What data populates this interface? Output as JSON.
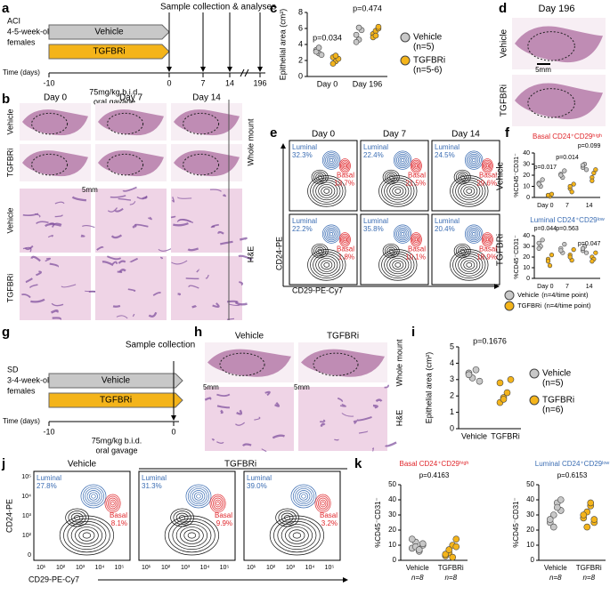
{
  "panel_labels": [
    "a",
    "b",
    "c",
    "d",
    "e",
    "f",
    "g",
    "h",
    "i",
    "j",
    "k"
  ],
  "a": {
    "group": "ACI",
    "age": "4-5-week-old",
    "sex": "females",
    "arms": [
      "Vehicle",
      "TGFBRi"
    ],
    "time_label": "Time (days)",
    "times": [
      "-10",
      "0",
      "7",
      "14",
      "196"
    ],
    "dose": "75mg/kg b.i.d.",
    "route": "oral gavage",
    "sample": "Sample collection & analyses"
  },
  "b": {
    "columns": [
      "Day 0",
      "Day 7",
      "Day 14"
    ],
    "rows": [
      "Vehicle",
      "TGFBRi",
      "Vehicle",
      "TGFBRi"
    ],
    "side": [
      "Whole mount",
      "H&E"
    ],
    "scale": "5mm"
  },
  "d": {
    "title": "Day 196",
    "rows": [
      "Vehicle",
      "TGFBRi"
    ],
    "scale": "5mm"
  },
  "e": {
    "columns": [
      "Day 0",
      "Day 7",
      "Day 14"
    ],
    "rows": [
      "Vehicle",
      "TGFBRi"
    ],
    "xlabel": "CD29-PE-Cy7",
    "ylabel": "CD24-PE",
    "gates": [
      "Luminal",
      "Basal"
    ],
    "luminal": [
      [
        "32.3%",
        "22.4%",
        "24.5%"
      ],
      [
        "22.2%",
        "35.8%",
        "20.4%"
      ]
    ],
    "basal": [
      [
        "13.7%",
        "21.5%",
        "29.6%"
      ],
      [
        "1.8%",
        "10.1%",
        "18.9%"
      ]
    ]
  },
  "g": {
    "group": "SD",
    "age": "3-4-week-old",
    "sex": "females",
    "arms": [
      "Vehicle",
      "TGFBRi"
    ],
    "time_label": "Time (days)",
    "times": [
      "-10",
      "0"
    ],
    "dose": "75mg/kg b.i.d.",
    "route": "oral gavage",
    "sample": "Sample collection"
  },
  "h": {
    "columns": [
      "Vehicle",
      "TGFBRi"
    ],
    "side": [
      "Whole mount",
      "H&E"
    ],
    "scale": "5mm"
  },
  "j": {
    "columns": [
      "Vehicle",
      "TGFBRi"
    ],
    "gates": [
      "Luminal",
      "Basal"
    ],
    "luminal": [
      "27.8%",
      "31.3%",
      "39.0%"
    ],
    "basal": [
      "8.1%",
      "9.9%",
      "3.2%"
    ],
    "xlabel": "CD29-PE-Cy7",
    "ylabel": "CD24-PE",
    "xticks": [
      "10¹",
      "10²",
      "10³",
      "10⁴",
      "10⁵"
    ],
    "yticks": [
      "10⁵",
      "10⁴",
      "10³",
      "10²",
      "0"
    ]
  },
  "chart_data": [
    {
      "type": "dot",
      "ylabel": "Epithelial area (cm²)",
      "categories": [
        "Day 0",
        "Day 196"
      ],
      "ylim": [
        0,
        8
      ],
      "yticks": [
        0,
        2,
        4,
        6,
        8
      ],
      "annotations": [
        "p=0.034",
        "p=0.474"
      ],
      "series": [
        {
          "name": "Vehicle",
          "note": "(n=5)",
          "color": "#c8c8c8",
          "values": [
            [
              3.3,
              2.9,
              2.7,
              3.1,
              3.6
            ],
            [
              5.2,
              4.6,
              5.8,
              4.3,
              6.1
            ]
          ]
        },
        {
          "name": "TGFBRi",
          "note": "(n=5-6)",
          "color": "#f4b41a",
          "values": [
            [
              2.4,
              1.9,
              2.2,
              1.6,
              2.6
            ],
            [
              5.3,
              5.7,
              6.0,
              4.9,
              5.1,
              6.2
            ]
          ]
        }
      ]
    },
    {
      "type": "dot",
      "title": "Basal CD24⁺CD29ʰⁱᵍʰ",
      "title_color": "#e0262b",
      "ylabel": "%CD45⁻CD31⁻",
      "categories": [
        "Day 0",
        "7",
        "14"
      ],
      "ylim": [
        0,
        40
      ],
      "yticks": [
        0,
        10,
        20,
        30,
        40
      ],
      "annotations": [
        "p=0.017",
        "p=0.014",
        "p=0.099"
      ],
      "series": [
        {
          "name": "Vehicle",
          "note": "(n=4/time point)",
          "color": "#c8c8c8",
          "values": [
            [
              13,
              10,
              16,
              12
            ],
            [
              21,
              18,
              24,
              20
            ],
            [
              27,
              30,
              25,
              29
            ]
          ]
        },
        {
          "name": "TGFBRi",
          "note": "(n=4/time point)",
          "color": "#f4b41a",
          "values": [
            [
              2,
              1,
              3,
              2
            ],
            [
              8,
              5,
              12,
              10
            ],
            [
              18,
              22,
              25,
              15
            ]
          ]
        }
      ]
    },
    {
      "type": "dot",
      "title": "Luminal CD24⁺CD29ˡᵒʷ",
      "title_color": "#3b6db3",
      "ylabel": "%CD45⁻CD31⁻",
      "categories": [
        "Day 0",
        "7",
        "14"
      ],
      "ylim": [
        0,
        40
      ],
      "yticks": [
        0,
        10,
        20,
        30,
        40
      ],
      "annotations": [
        "p=0.044",
        "p=0.563",
        "p=0.047"
      ],
      "series": [
        {
          "name": "Vehicle",
          "color": "#c8c8c8",
          "values": [
            [
              33,
              30,
              36,
              28
            ],
            [
              28,
              24,
              32,
              26
            ],
            [
              26,
              30,
              24,
              28
            ]
          ]
        },
        {
          "name": "TGFBRi",
          "color": "#f4b41a",
          "values": [
            [
              18,
              12,
              22,
              16
            ],
            [
              22,
              17,
              27,
              20
            ],
            [
              20,
              18,
              24,
              16
            ]
          ]
        }
      ]
    },
    {
      "type": "dot",
      "ylabel": "Epithelial area (cm²)",
      "categories": [
        "Vehicle",
        "TGFBRi"
      ],
      "colors": [
        "#c8c8c8",
        "#f4b41a"
      ],
      "ylim": [
        0,
        5
      ],
      "yticks": [
        0,
        1,
        2,
        3,
        4,
        5
      ],
      "annotations": [
        "p=0.1676"
      ],
      "values": [
        [
          3.4,
          3.1,
          3.6,
          2.9,
          3.3
        ],
        [
          2.8,
          1.9,
          2.2,
          3.0,
          1.6,
          1.8
        ]
      ],
      "legend": [
        {
          "name": "Vehicle",
          "note": "(n=5)"
        },
        {
          "name": "TGFBRi",
          "note": "(n=6)"
        }
      ]
    },
    {
      "type": "dot",
      "title": "Basal CD24⁺CD29ʰⁱᵍʰ",
      "title_color": "#e0262b",
      "ylabel": "%CD45⁻CD31⁻",
      "categories": [
        "Vehicle",
        "TGFBRi"
      ],
      "n_labels": [
        "n=8",
        "n=8"
      ],
      "colors": [
        "#c8c8c8",
        "#f4b41a"
      ],
      "ylim": [
        0,
        50
      ],
      "yticks": [
        0,
        10,
        20,
        30,
        40,
        50
      ],
      "annotations": [
        "p=0.4163"
      ],
      "values": [
        [
          8,
          12,
          6,
          10,
          14,
          9,
          7,
          11
        ],
        [
          3,
          5,
          10,
          14,
          4,
          7,
          2,
          9
        ]
      ]
    },
    {
      "type": "dot",
      "title": "Luminal CD24⁺CD29ˡᵒʷ",
      "title_color": "#3b6db3",
      "ylabel": "%CD45⁻CD31⁻",
      "categories": [
        "Vehicle",
        "TGFBRi"
      ],
      "n_labels": [
        "n=8",
        "n=8"
      ],
      "colors": [
        "#c8c8c8",
        "#f4b41a"
      ],
      "ylim": [
        0,
        50
      ],
      "yticks": [
        0,
        10,
        20,
        30,
        40,
        50
      ],
      "annotations": [
        "p=0.6153"
      ],
      "values": [
        [
          25,
          30,
          38,
          33,
          27,
          22,
          35,
          40
        ],
        [
          28,
          32,
          36,
          25,
          30,
          22,
          38,
          27
        ]
      ]
    }
  ]
}
